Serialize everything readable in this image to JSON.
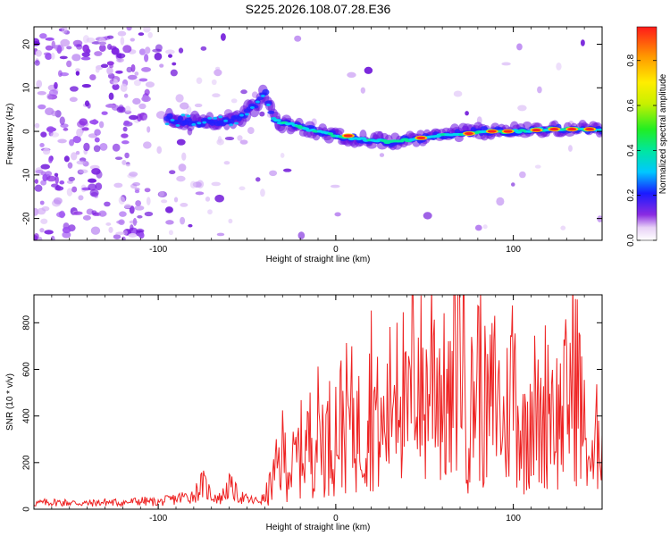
{
  "figure_title": "S225.2026.108.07.28.E36",
  "chart_data": [
    {
      "type": "heatmap",
      "name": "spectrogram",
      "title": "",
      "xlabel": "Height of straight line (km)",
      "ylabel": "Frequency (Hz)",
      "xlim": [
        -170,
        150
      ],
      "ylim": [
        -25,
        24
      ],
      "xticks": [
        -100,
        0,
        100
      ],
      "yticks": [
        -20,
        -10,
        0,
        10,
        20
      ],
      "grid": false,
      "colorbar": {
        "label": "Normalized spectral amplitude",
        "range": [
          0.0,
          0.95
        ],
        "ticks": [
          0.0,
          0.2,
          0.4,
          0.6,
          0.8
        ],
        "colormap": "rainbow"
      },
      "ridge": {
        "description": "Frequency peak trace vs height",
        "x": [
          -95,
          -80,
          -65,
          -55,
          -45,
          -40,
          -35,
          -30,
          -20,
          -10,
          0,
          10,
          20,
          30,
          40,
          50,
          60,
          70,
          80,
          90,
          100,
          110,
          120,
          130,
          140,
          150
        ],
        "y": [
          3,
          2,
          2,
          3,
          6,
          9,
          3,
          2,
          1,
          0,
          -1,
          -1.5,
          -2,
          -2.5,
          -2,
          -1.5,
          -1,
          -0.5,
          0,
          0,
          0,
          0.3,
          0.5,
          0.5,
          0.5,
          0.5
        ]
      }
    },
    {
      "type": "line",
      "name": "snr",
      "title": "",
      "xlabel": "Height of straight line (km)",
      "ylabel": "SNR (10 * v/v)",
      "xlim": [
        -170,
        150
      ],
      "ylim": [
        0,
        920
      ],
      "xticks": [
        -100,
        0,
        100
      ],
      "yticks": [
        0,
        200,
        400,
        600,
        800
      ],
      "grid": false,
      "series": [
        {
          "name": "SNR",
          "color": "#ee2222",
          "x": [
            -170,
            -160,
            -150,
            -140,
            -130,
            -120,
            -110,
            -100,
            -90,
            -80,
            -75,
            -70,
            -65,
            -60,
            -55,
            -50,
            -45,
            -40,
            -35,
            -30,
            -25,
            -20,
            -15,
            -10,
            -5,
            0,
            5,
            10,
            15,
            20,
            25,
            30,
            35,
            40,
            45,
            50,
            55,
            60,
            65,
            70,
            75,
            80,
            85,
            90,
            95,
            100,
            105,
            110,
            115,
            120,
            125,
            130,
            135,
            140,
            145,
            150
          ],
          "y": [
            25,
            30,
            28,
            25,
            30,
            28,
            35,
            30,
            45,
            60,
            110,
            60,
            45,
            100,
            60,
            40,
            35,
            45,
            130,
            240,
            170,
            250,
            290,
            340,
            300,
            350,
            390,
            380,
            310,
            520,
            300,
            410,
            720,
            340,
            680,
            420,
            700,
            480,
            390,
            880,
            350,
            620,
            380,
            520,
            330,
            610,
            280,
            500,
            330,
            540,
            380,
            460,
            620,
            320,
            160,
            500
          ]
        }
      ]
    }
  ]
}
